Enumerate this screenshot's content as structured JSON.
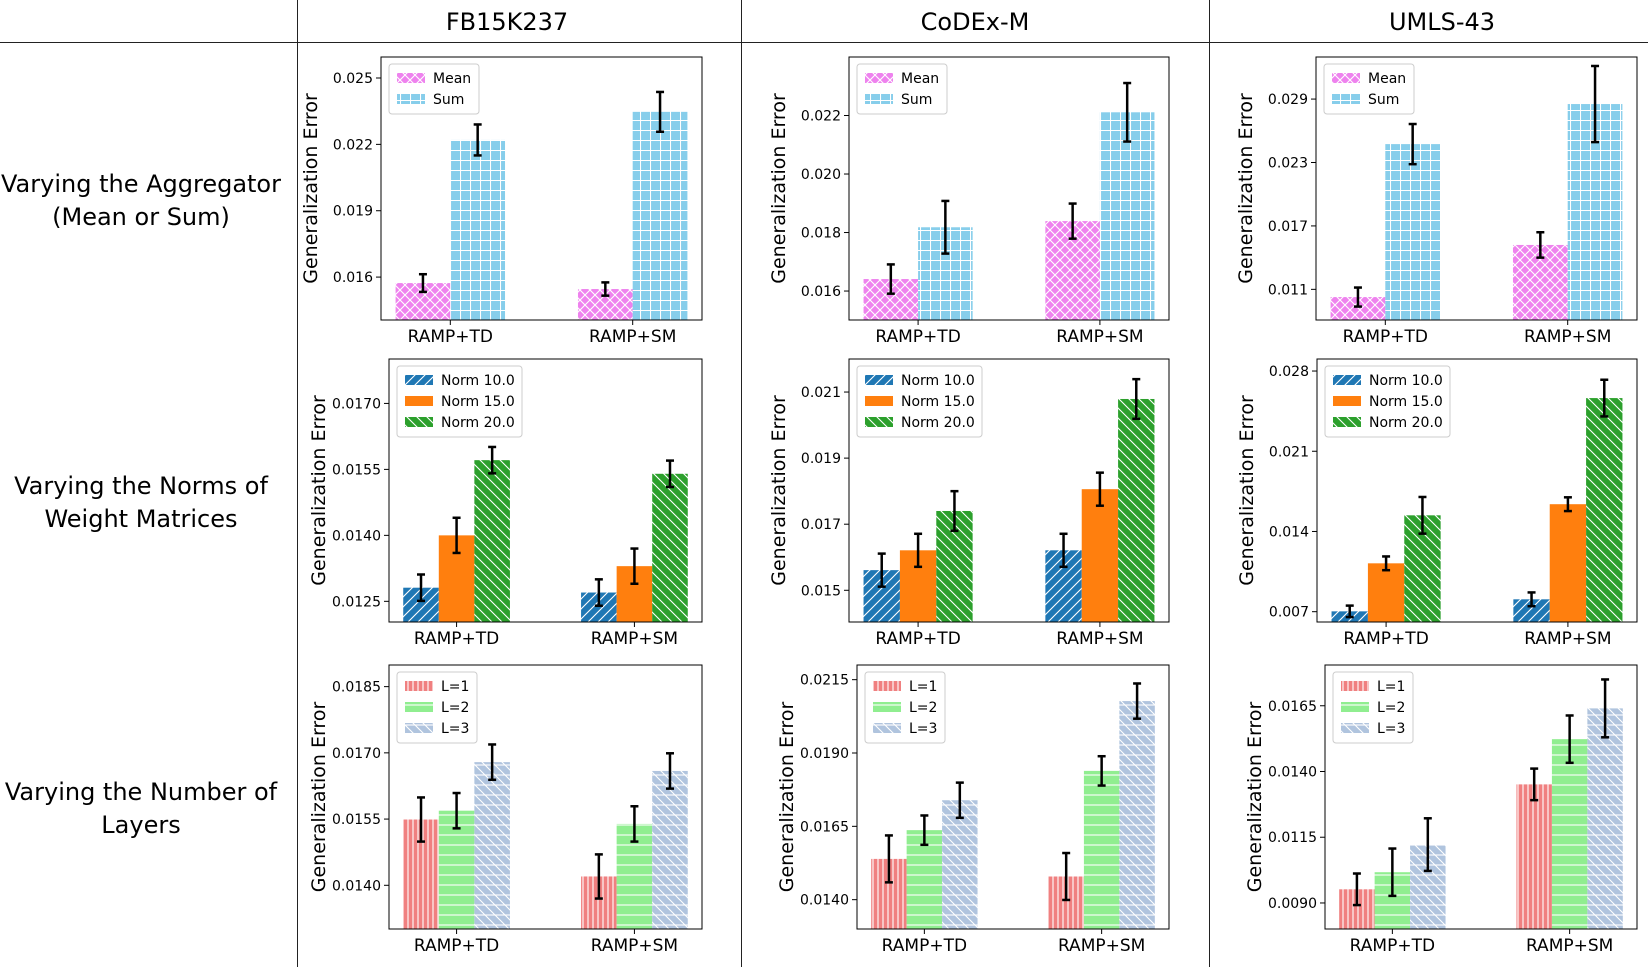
{
  "figure": {
    "column_headers": [
      "FB15K237",
      "CoDEx-M",
      "UMLS-43"
    ],
    "row_headers": [
      [
        "Varying the Aggregator",
        "(Mean or Sum)"
      ],
      [
        "Varying the Norms of",
        "Weight Matrices"
      ],
      [
        "Varying the Number of",
        "Layers"
      ]
    ]
  },
  "colors": {
    "Mean": "#ee82ee",
    "Sum": "#87ceeb",
    "Norm 10.0": "#1f77b4",
    "Norm 15.0": "#ff7f0e",
    "Norm 20.0": "#2ca02c",
    "L=1": "#f08080",
    "L=2": "#90ee90",
    "L=3": "#b0c4de"
  },
  "hatches": {
    "Mean": "x",
    "Sum": "+",
    "Norm 10.0": "/",
    "Norm 15.0": "",
    "Norm 20.0": "\\",
    "L=1": "|",
    "L=2": "-",
    "L=3": "\\-"
  },
  "chart_data": [
    {
      "type": "bar",
      "dataset": "FB15K237",
      "categories": [
        "RAMP+TD",
        "RAMP+SM"
      ],
      "ylabel": "Generalization Error",
      "ylim": [
        0.01406,
        0.02595
      ],
      "yticks": [
        "0.016",
        "0.019",
        "0.022",
        "0.025"
      ],
      "legend": "top-left",
      "grid": false,
      "series": [
        {
          "name": "Mean",
          "values": [
            0.01573,
            0.01546
          ],
          "errors": [
            0.0004,
            0.0003
          ]
        },
        {
          "name": "Sum",
          "values": [
            0.0222,
            0.02347
          ],
          "errors": [
            0.0007,
            0.0009
          ]
        }
      ]
    },
    {
      "type": "bar",
      "dataset": "CoDEx-M",
      "categories": [
        "RAMP+TD",
        "RAMP+SM"
      ],
      "ylabel": "Generalization Error",
      "ylim": [
        0.01501,
        0.024
      ],
      "yticks": [
        "0.016",
        "0.018",
        "0.020",
        "0.022"
      ],
      "legend": "top-left",
      "grid": false,
      "series": [
        {
          "name": "Mean",
          "values": [
            0.01641,
            0.01839
          ],
          "errors": [
            0.0005,
            0.0006
          ]
        },
        {
          "name": "Sum",
          "values": [
            0.01818,
            0.02211
          ],
          "errors": [
            0.0009,
            0.001
          ]
        }
      ]
    },
    {
      "type": "bar",
      "dataset": "UMLS-43",
      "categories": [
        "RAMP+TD",
        "RAMP+SM"
      ],
      "ylabel": "Generalization Error",
      "ylim": [
        0.0081,
        0.03298
      ],
      "yticks": [
        "0.011",
        "0.017",
        "0.023",
        "0.029"
      ],
      "legend": "top-left",
      "grid": false,
      "series": [
        {
          "name": "Mean",
          "values": [
            0.01027,
            0.0152
          ],
          "errors": [
            0.0009,
            0.0012
          ]
        },
        {
          "name": "Sum",
          "values": [
            0.02474,
            0.02853
          ],
          "errors": [
            0.0019,
            0.0036
          ]
        }
      ]
    },
    {
      "type": "bar",
      "dataset": "FB15K237",
      "categories": [
        "RAMP+TD",
        "RAMP+SM"
      ],
      "ylabel": "Generalization Error",
      "ylim": [
        0.01203,
        0.01801
      ],
      "yticks": [
        "0.0125",
        "0.0140",
        "0.0155",
        "0.0170"
      ],
      "legend": "top-left",
      "grid": false,
      "series": [
        {
          "name": "Norm 10.0",
          "values": [
            0.01281,
            0.0127
          ],
          "errors": [
            0.0003,
            0.0003
          ]
        },
        {
          "name": "Norm 15.0",
          "values": [
            0.014,
            0.0133
          ],
          "errors": [
            0.0004,
            0.0004
          ]
        },
        {
          "name": "Norm 20.0",
          "values": [
            0.01571,
            0.0154
          ],
          "errors": [
            0.0003,
            0.0003
          ]
        }
      ]
    },
    {
      "type": "bar",
      "dataset": "CoDEx-M",
      "categories": [
        "RAMP+TD",
        "RAMP+SM"
      ],
      "ylabel": "Generalization Error",
      "ylim": [
        0.01404,
        0.022
      ],
      "yticks": [
        "0.015",
        "0.017",
        "0.019",
        "0.021"
      ],
      "legend": "top-left",
      "grid": false,
      "series": [
        {
          "name": "Norm 10.0",
          "values": [
            0.01561,
            0.01621
          ],
          "errors": [
            0.0005,
            0.0005
          ]
        },
        {
          "name": "Norm 15.0",
          "values": [
            0.01621,
            0.01806
          ],
          "errors": [
            0.0005,
            0.0005
          ]
        },
        {
          "name": "Norm 20.0",
          "values": [
            0.0174,
            0.02079
          ],
          "errors": [
            0.0006,
            0.0006
          ]
        }
      ]
    },
    {
      "type": "bar",
      "dataset": "UMLS-43",
      "categories": [
        "RAMP+TD",
        "RAMP+SM"
      ],
      "ylabel": "Generalization Error",
      "ylim": [
        0.0061,
        0.02905
      ],
      "yticks": [
        "0.007",
        "0.014",
        "0.021",
        "0.028"
      ],
      "legend": "top-left",
      "grid": false,
      "series": [
        {
          "name": "Norm 10.0",
          "values": [
            0.00703,
            0.00808
          ],
          "errors": [
            0.0005,
            0.0006
          ]
        },
        {
          "name": "Norm 15.0",
          "values": [
            0.01122,
            0.01638
          ],
          "errors": [
            0.0006,
            0.0006
          ]
        },
        {
          "name": "Norm 20.0",
          "values": [
            0.01541,
            0.02564
          ],
          "errors": [
            0.0016,
            0.0016
          ]
        }
      ]
    },
    {
      "type": "bar",
      "dataset": "FB15K237",
      "categories": [
        "RAMP+TD",
        "RAMP+SM"
      ],
      "ylabel": "Generalization Error",
      "ylim": [
        0.01301,
        0.01899
      ],
      "yticks": [
        "0.0140",
        "0.0155",
        "0.0170",
        "0.0185"
      ],
      "legend": "top-left",
      "grid": false,
      "series": [
        {
          "name": "L=1",
          "values": [
            0.01549,
            0.0142
          ],
          "errors": [
            0.0005,
            0.0005
          ]
        },
        {
          "name": "L=2",
          "values": [
            0.01569,
            0.01539
          ],
          "errors": [
            0.0004,
            0.0004
          ]
        },
        {
          "name": "L=3",
          "values": [
            0.01679,
            0.01659
          ],
          "errors": [
            0.0004,
            0.0004
          ]
        }
      ]
    },
    {
      "type": "bar",
      "dataset": "CoDEx-M",
      "categories": [
        "RAMP+TD",
        "RAMP+SM"
      ],
      "ylabel": "Generalization Error",
      "ylim": [
        0.013,
        0.022
      ],
      "yticks": [
        "0.0140",
        "0.0165",
        "0.0190",
        "0.0215"
      ],
      "legend": "top-left",
      "grid": false,
      "series": [
        {
          "name": "L=1",
          "values": [
            0.01539,
            0.01479
          ],
          "errors": [
            0.0008,
            0.0008
          ]
        },
        {
          "name": "L=2",
          "values": [
            0.01637,
            0.01839
          ],
          "errors": [
            0.0005,
            0.0005
          ]
        },
        {
          "name": "L=3",
          "values": [
            0.01739,
            0.02077
          ],
          "errors": [
            0.0006,
            0.0006
          ]
        }
      ]
    },
    {
      "type": "bar",
      "dataset": "UMLS-43",
      "categories": [
        "RAMP+TD",
        "RAMP+SM"
      ],
      "ylabel": "Generalization Error",
      "ylim": [
        0.00801,
        0.01805
      ],
      "yticks": [
        "0.0090",
        "0.0115",
        "0.0140",
        "0.0165"
      ],
      "legend": "top-left",
      "grid": false,
      "series": [
        {
          "name": "L=1",
          "values": [
            0.00952,
            0.01351
          ],
          "errors": [
            0.0006,
            0.0006
          ]
        },
        {
          "name": "L=2",
          "values": [
            0.01017,
            0.01523
          ],
          "errors": [
            0.0009,
            0.0009
          ]
        },
        {
          "name": "L=3",
          "values": [
            0.01122,
            0.0164
          ],
          "errors": [
            0.001,
            0.0011
          ]
        }
      ]
    }
  ]
}
